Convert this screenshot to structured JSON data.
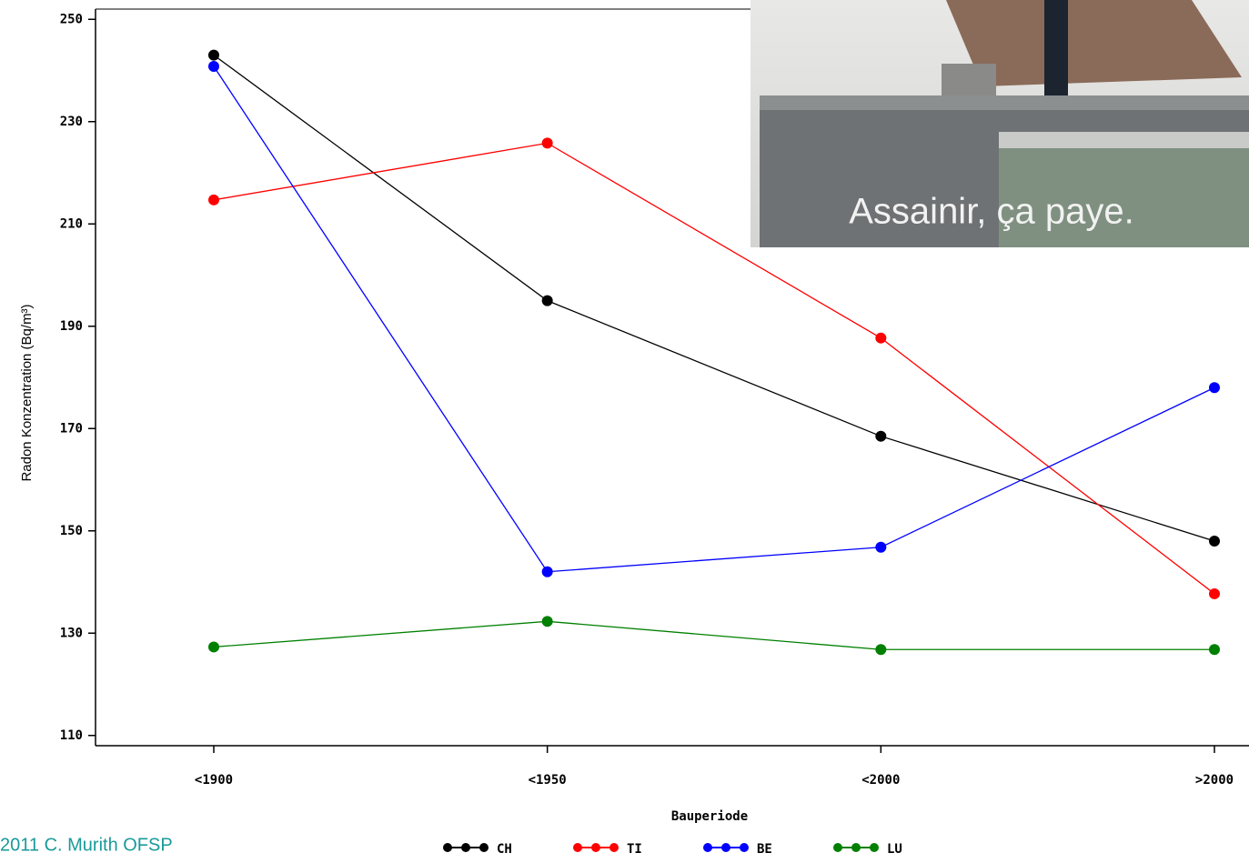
{
  "chart_data": {
    "type": "line",
    "x_label": "Bauperiode",
    "y_label": "Radon Konzentration (Bq/m³)",
    "categories": [
      "<1900",
      "<1950",
      "<2000",
      ">2000"
    ],
    "series": [
      {
        "name": "CH",
        "color": "#000000",
        "values": [
          243,
          195,
          168.5,
          148
        ]
      },
      {
        "name": "TI",
        "color": "#ff0000",
        "values": [
          214.7,
          225.8,
          187.7,
          137.7
        ]
      },
      {
        "name": "BE",
        "color": "#0000ff",
        "values": [
          240.8,
          142,
          146.8,
          178
        ]
      },
      {
        "name": "LU",
        "color": "#008000",
        "values": [
          127.3,
          132.3,
          126.8,
          126.8
        ]
      }
    ],
    "ylim": [
      108,
      252
    ],
    "yticks": [
      110,
      130,
      150,
      170,
      190,
      210,
      230,
      250
    ],
    "photo_caption": "Assainir, ça paye.",
    "footer": "2011 C. Murith OFSP"
  }
}
